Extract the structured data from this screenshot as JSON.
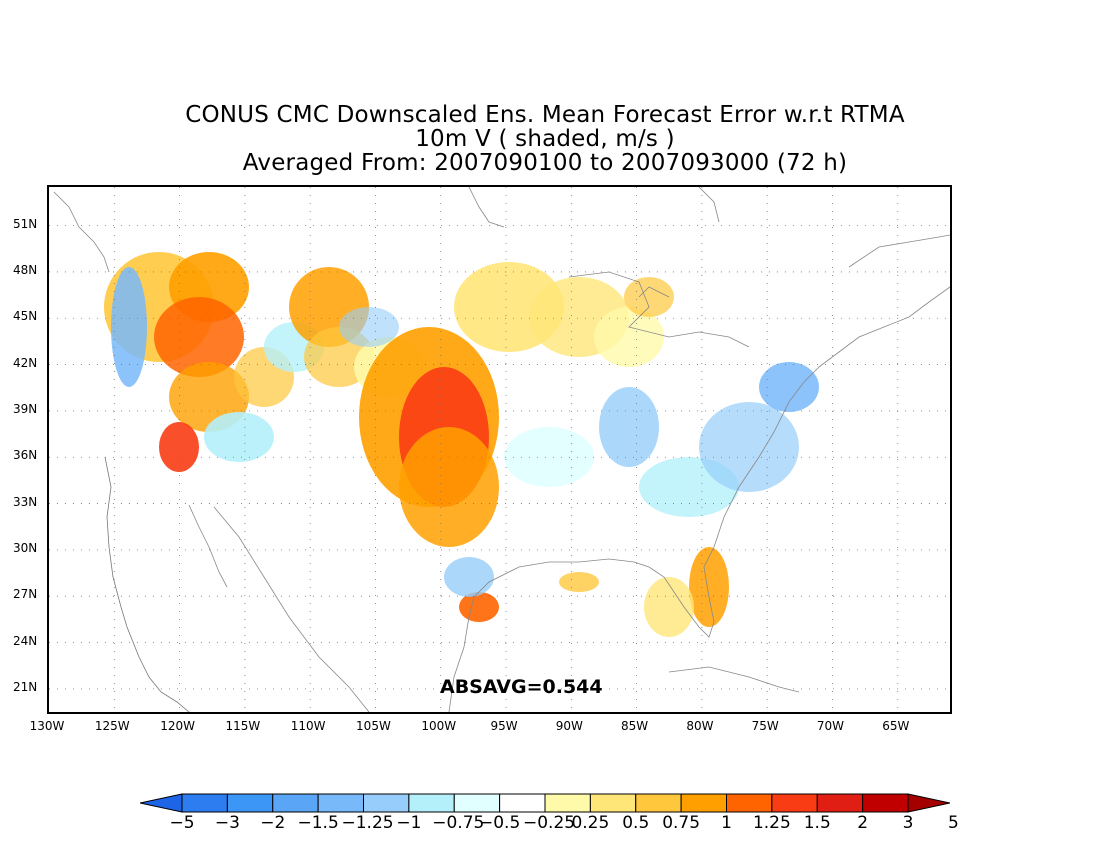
{
  "title": {
    "line1": "CONUS CMC Downscaled Ens. Mean Forecast Error w.r.t RTMA",
    "line2": "10m V ( shaded, m/s )",
    "line3": "Averaged From: 2007090100 to 2007093000 (72 h)"
  },
  "axes": {
    "lat_labels": [
      "51N",
      "48N",
      "45N",
      "42N",
      "39N",
      "36N",
      "33N",
      "30N",
      "27N",
      "24N",
      "21N"
    ],
    "lat_values": [
      51,
      48,
      45,
      42,
      39,
      36,
      33,
      30,
      27,
      24,
      21
    ],
    "lon_labels": [
      "130W",
      "125W",
      "120W",
      "115W",
      "110W",
      "105W",
      "100W",
      "95W",
      "90W",
      "85W",
      "80W",
      "75W",
      "70W",
      "65W"
    ],
    "lon_values": [
      -130,
      -125,
      -120,
      -115,
      -110,
      -105,
      -100,
      -95,
      -90,
      -85,
      -80,
      -75,
      -70,
      -65
    ],
    "lat_range": [
      19.5,
      53.5
    ],
    "lon_range": [
      -130,
      -61
    ]
  },
  "stat": {
    "label": "ABSAVG=0.544"
  },
  "colorbar": {
    "labels": [
      "−5",
      "−3",
      "−2",
      "−1.5",
      "−1.25",
      "−1",
      "−0.75",
      "−0.5",
      "−0.25",
      "0.25",
      "0.5",
      "0.75",
      "1",
      "1.25",
      "1.5",
      "2",
      "3",
      "5"
    ],
    "colors": [
      "#1e64e6",
      "#2d7df0",
      "#3c96f5",
      "#5aa5f5",
      "#78b9fa",
      "#96cdfa",
      "#b4f0fa",
      "#e1ffff",
      "#ffffff",
      "#fffaaa",
      "#ffe678",
      "#ffc83c",
      "#ffa000",
      "#ff6400",
      "#fa3c14",
      "#e11e14",
      "#c00000",
      "#a50000"
    ]
  },
  "colors": {
    "frame": "#000000",
    "coast": "#777777",
    "grid": "#777777"
  }
}
